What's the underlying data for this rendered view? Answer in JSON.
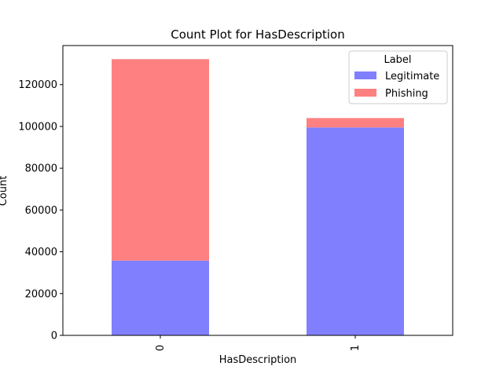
{
  "chart_data": {
    "type": "bar",
    "stacked": true,
    "title": "Count Plot for HasDescription",
    "xlabel": "HasDescription",
    "ylabel": "Count",
    "categories": [
      "0",
      "1"
    ],
    "series": [
      {
        "name": "Legitimate",
        "color": "#8080ff",
        "values": [
          35800,
          99500
        ]
      },
      {
        "name": "Phishing",
        "color": "#ff8080",
        "values": [
          96400,
          4500
        ]
      }
    ],
    "ylim": [
      0,
      138700
    ],
    "yticks": [
      0,
      20000,
      40000,
      60000,
      80000,
      100000,
      120000
    ],
    "legend": {
      "title": "Label",
      "position": "top-right"
    },
    "grid": false
  }
}
